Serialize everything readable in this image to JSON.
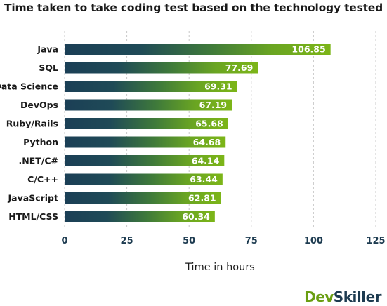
{
  "title": "Time taken to take coding test based on the technology tested",
  "brand": {
    "part1": "Dev",
    "part2": "Skiller"
  },
  "colors": {
    "bar_start": "#1b3f56",
    "bar_end": "#7cb518",
    "grid": "#c8c8c8",
    "tick": "#1d3b50"
  },
  "chart_data": {
    "type": "bar",
    "orientation": "horizontal",
    "categories": [
      "Java",
      "SQL",
      "Data Science",
      "DevOps",
      "Ruby/Rails",
      "Python",
      ".NET/C#",
      "C/C++",
      "JavaScript",
      "HTML/CSS"
    ],
    "values": [
      106.85,
      77.69,
      69.31,
      67.19,
      65.68,
      64.68,
      64.14,
      63.44,
      62.81,
      60.34
    ],
    "value_labels": [
      "106.85",
      "77.69",
      "69.31",
      "67.19",
      "65.68",
      "64.68",
      "64.14",
      "63.44",
      "62.81",
      "60.34"
    ],
    "xlabel": "Time in hours",
    "ylabel": "",
    "xlim": [
      0,
      125
    ],
    "xticks": [
      0,
      25,
      50,
      75,
      100,
      125
    ],
    "xtick_labels": [
      "0",
      "25",
      "50",
      "75",
      "100",
      "125"
    ],
    "grid": "vertical dashed"
  }
}
